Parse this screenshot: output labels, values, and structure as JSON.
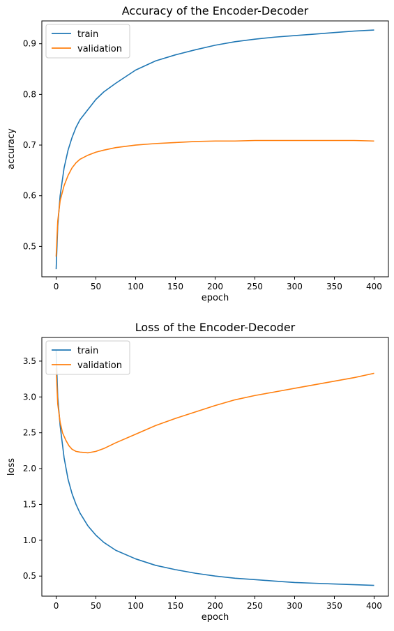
{
  "chart_data": [
    {
      "type": "line",
      "title": "Accuracy of the Encoder-Decoder",
      "xlabel": "epoch",
      "ylabel": "accuracy",
      "xlim": [
        -18,
        418
      ],
      "ylim": [
        0.44,
        0.945
      ],
      "xticks": [
        0,
        50,
        100,
        150,
        200,
        250,
        300,
        350,
        400
      ],
      "yticks": [
        0.5,
        0.6,
        0.7,
        0.8,
        0.9
      ],
      "legend": "top-left",
      "grid": false,
      "series": [
        {
          "name": "train",
          "color": "#1f77b4",
          "x": [
            0,
            2,
            5,
            10,
            15,
            20,
            25,
            30,
            40,
            50,
            60,
            75,
            100,
            125,
            150,
            175,
            200,
            225,
            250,
            275,
            300,
            325,
            350,
            375,
            400
          ],
          "y": [
            0.455,
            0.54,
            0.6,
            0.655,
            0.69,
            0.715,
            0.735,
            0.75,
            0.77,
            0.79,
            0.805,
            0.822,
            0.848,
            0.866,
            0.878,
            0.888,
            0.897,
            0.904,
            0.909,
            0.913,
            0.916,
            0.919,
            0.922,
            0.925,
            0.927
          ]
        },
        {
          "name": "validation",
          "color": "#ff7f0e",
          "x": [
            0,
            2,
            5,
            10,
            15,
            20,
            25,
            30,
            40,
            50,
            60,
            75,
            100,
            125,
            150,
            175,
            200,
            225,
            250,
            275,
            300,
            325,
            350,
            375,
            400
          ],
          "y": [
            0.48,
            0.55,
            0.59,
            0.62,
            0.64,
            0.655,
            0.665,
            0.672,
            0.68,
            0.686,
            0.69,
            0.695,
            0.7,
            0.703,
            0.705,
            0.707,
            0.708,
            0.708,
            0.709,
            0.709,
            0.709,
            0.709,
            0.709,
            0.709,
            0.708
          ]
        }
      ]
    },
    {
      "type": "line",
      "title": "Loss of the Encoder-Decoder",
      "xlabel": "epoch",
      "ylabel": "loss",
      "xlim": [
        -18,
        418
      ],
      "ylim": [
        0.22,
        3.83
      ],
      "xticks": [
        0,
        50,
        100,
        150,
        200,
        250,
        300,
        350,
        400
      ],
      "yticks": [
        0.5,
        1.0,
        1.5,
        2.0,
        2.5,
        3.0,
        3.5
      ],
      "legend": "top-left",
      "grid": false,
      "series": [
        {
          "name": "train",
          "color": "#1f77b4",
          "x": [
            0,
            2,
            5,
            10,
            15,
            20,
            25,
            30,
            40,
            50,
            60,
            75,
            100,
            125,
            150,
            175,
            200,
            225,
            250,
            275,
            300,
            325,
            350,
            375,
            400
          ],
          "y": [
            3.65,
            3.0,
            2.6,
            2.15,
            1.85,
            1.65,
            1.5,
            1.38,
            1.2,
            1.07,
            0.97,
            0.86,
            0.74,
            0.65,
            0.59,
            0.54,
            0.5,
            0.47,
            0.45,
            0.43,
            0.41,
            0.4,
            0.39,
            0.38,
            0.37
          ]
        },
        {
          "name": "validation",
          "color": "#ff7f0e",
          "x": [
            0,
            2,
            5,
            8,
            12,
            16,
            20,
            25,
            30,
            40,
            50,
            60,
            75,
            100,
            125,
            150,
            175,
            200,
            225,
            250,
            275,
            300,
            325,
            350,
            375,
            400
          ],
          "y": [
            3.4,
            2.9,
            2.65,
            2.5,
            2.4,
            2.32,
            2.27,
            2.24,
            2.23,
            2.22,
            2.24,
            2.28,
            2.36,
            2.48,
            2.6,
            2.7,
            2.79,
            2.88,
            2.96,
            3.02,
            3.07,
            3.12,
            3.17,
            3.22,
            3.27,
            3.33
          ]
        }
      ]
    }
  ]
}
